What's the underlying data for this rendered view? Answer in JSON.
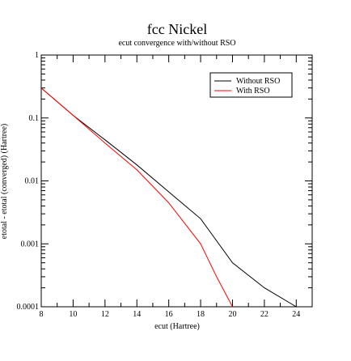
{
  "chart_data": {
    "type": "line",
    "title": "fcc Nickel",
    "subtitle": "ecut convergence with/without RSO",
    "xlabel": "ecut (Hartree)",
    "ylabel": "etotal - etotal (converged) (Hartree)",
    "xlim": [
      8,
      25
    ],
    "ylim": [
      0.0001,
      1
    ],
    "yscale": "log",
    "x_ticks": [
      8,
      10,
      12,
      14,
      16,
      18,
      20,
      22,
      24
    ],
    "y_ticks": [
      {
        "value": 0.0001,
        "label": "0.0001"
      },
      {
        "value": 0.001,
        "label": "0.001"
      },
      {
        "value": 0.01,
        "label": "0.01"
      },
      {
        "value": 0.1,
        "label": "0.1"
      },
      {
        "value": 1,
        "label": "1"
      }
    ],
    "legend_position": "top-right",
    "grid": false,
    "series": [
      {
        "name": "Without RSO",
        "color": "#000000",
        "points": [
          [
            8,
            0.3
          ],
          [
            10,
            0.11
          ],
          [
            12,
            0.045
          ],
          [
            14,
            0.018
          ],
          [
            16,
            0.0067
          ],
          [
            18,
            0.0025
          ],
          [
            20,
            0.0005
          ],
          [
            22,
            0.0002
          ],
          [
            24,
            0.0001
          ]
        ]
      },
      {
        "name": "With RSO",
        "color": "#ff0000",
        "points": [
          [
            8,
            0.3
          ],
          [
            10,
            0.11
          ],
          [
            12,
            0.04
          ],
          [
            14,
            0.015
          ],
          [
            16,
            0.0045
          ],
          [
            18,
            0.001
          ],
          [
            19,
            0.0003
          ],
          [
            20,
            0.0001
          ]
        ]
      }
    ]
  }
}
